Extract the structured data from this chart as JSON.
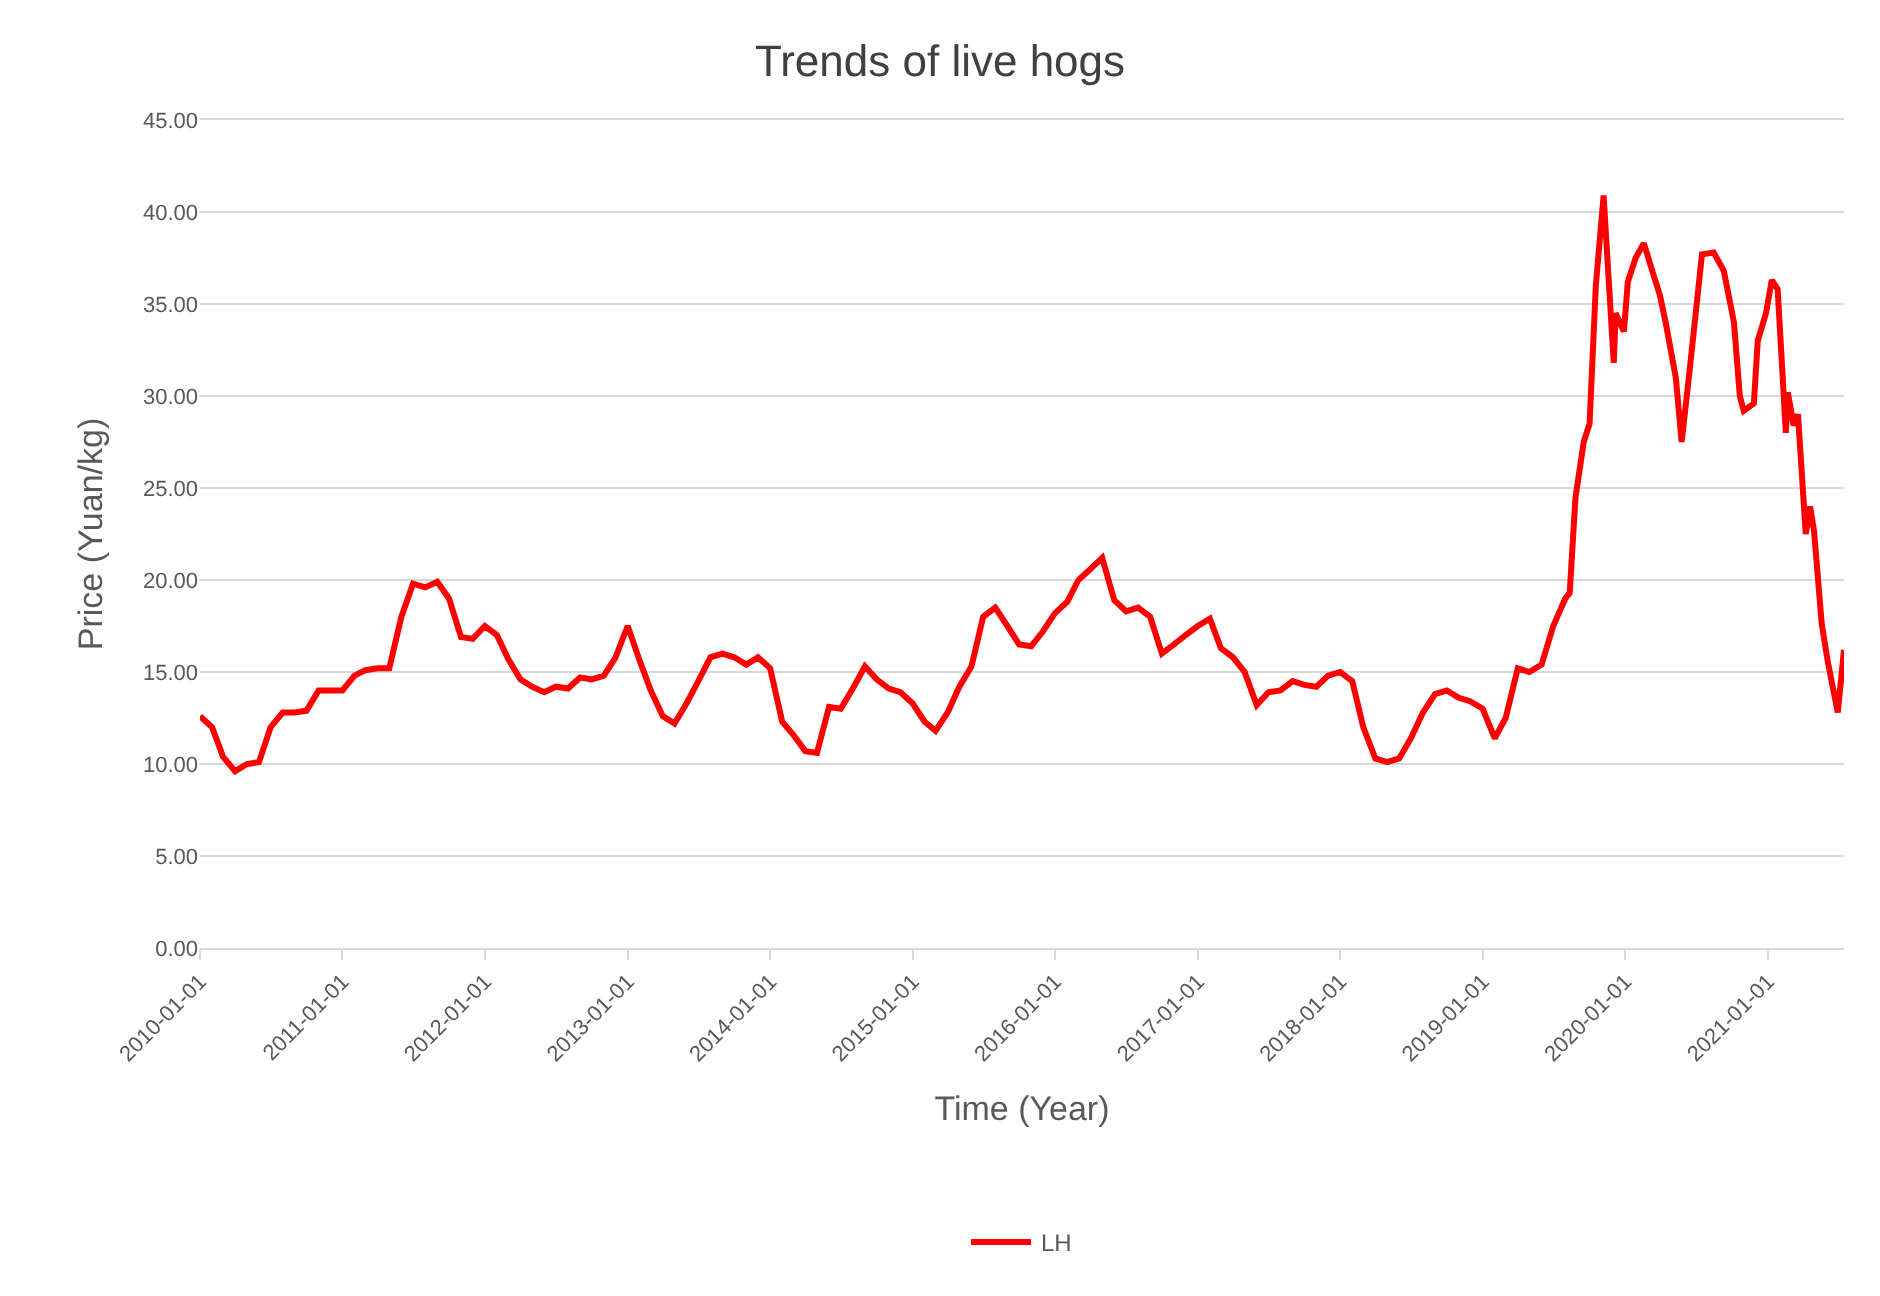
{
  "chart_data": {
    "type": "line",
    "title": "Trends of live hogs",
    "xlabel": "Time (Year)",
    "ylabel": "Price (Yuan/kg)",
    "x": [
      "2010-01",
      "2010-02",
      "2010-03",
      "2010-04",
      "2010-05",
      "2010-06",
      "2010-07",
      "2010-08",
      "2010-09",
      "2010-10",
      "2010-11",
      "2010-12",
      "2011-01",
      "2011-02",
      "2011-03",
      "2011-04",
      "2011-05",
      "2011-06",
      "2011-07",
      "2011-08",
      "2011-09",
      "2011-10",
      "2011-11",
      "2011-12",
      "2012-01",
      "2012-02",
      "2012-03",
      "2012-04",
      "2012-05",
      "2012-06",
      "2012-07",
      "2012-08",
      "2012-09",
      "2012-10",
      "2012-11",
      "2012-12",
      "2013-01",
      "2013-02",
      "2013-03",
      "2013-04",
      "2013-05",
      "2013-06",
      "2013-07",
      "2013-08",
      "2013-09",
      "2013-10",
      "2013-11",
      "2013-12",
      "2014-01",
      "2014-02",
      "2014-03",
      "2014-04",
      "2014-05",
      "2014-06",
      "2014-07",
      "2014-08",
      "2014-09",
      "2014-10",
      "2014-11",
      "2014-12",
      "2015-01",
      "2015-02",
      "2015-03",
      "2015-04",
      "2015-05",
      "2015-06",
      "2015-07",
      "2015-08",
      "2015-09",
      "2015-10",
      "2015-11",
      "2015-12",
      "2016-01",
      "2016-02",
      "2016-03",
      "2016-04",
      "2016-05",
      "2016-06",
      "2016-07",
      "2016-08",
      "2016-09",
      "2016-10",
      "2016-11",
      "2016-12",
      "2017-01",
      "2017-02",
      "2017-03",
      "2017-04",
      "2017-05",
      "2017-06",
      "2017-07",
      "2017-08",
      "2017-09",
      "2017-10",
      "2017-11",
      "2017-12",
      "2018-01",
      "2018-02",
      "2018-03",
      "2018-04",
      "2018-05",
      "2018-06",
      "2018-07",
      "2018-08",
      "2018-09",
      "2018-10",
      "2018-11",
      "2018-12",
      "2019-01",
      "2019-02",
      "2019-03",
      "2019-04",
      "2019-05",
      "2019-06",
      "2019-07",
      "2019-08",
      "2019-08-12",
      "2019-08-27",
      "2019-09-17",
      "2019-10-02",
      "2019-10-18",
      "2019-11-07",
      "2019-11-18",
      "2019-12-03",
      "2019-12-08",
      "2019-12-29",
      "2020-01-08",
      "2020-01-28",
      "2020-02-18",
      "2020-03-15",
      "2020-03-30",
      "2020-04-14",
      "2020-05-10",
      "2020-05-25",
      "2020-06-15",
      "2020-06-25",
      "2020-07-16",
      "2020-08-15",
      "2020-09-10",
      "2020-10-06",
      "2020-10-21",
      "2020-10-31",
      "2020-11-26",
      "2020-12-06",
      "2020-12-27",
      "2021-01-11",
      "2021-01-26",
      "2021-02-16",
      "2021-02-21",
      "2021-03-08",
      "2021-03-19",
      "2021-04-08",
      "2021-04-19",
      "2021-04-29",
      "2021-05-19",
      "2021-06-04",
      "2021-06-29",
      "2021-07-15"
    ],
    "series": [
      {
        "name": "LH",
        "color": "#ff0000",
        "values": [
          12.6,
          12.0,
          10.4,
          9.6,
          10.0,
          10.1,
          12.0,
          12.8,
          12.8,
          12.9,
          14.0,
          14.0,
          14.0,
          14.8,
          15.1,
          15.2,
          15.2,
          18.0,
          19.8,
          19.6,
          19.9,
          19.0,
          16.9,
          16.8,
          17.5,
          17.0,
          15.7,
          14.6,
          14.2,
          13.9,
          14.2,
          14.1,
          14.7,
          14.6,
          14.8,
          15.8,
          17.5,
          15.6,
          14.0,
          12.6,
          12.2,
          13.3,
          14.5,
          15.8,
          16.0,
          15.8,
          15.4,
          15.8,
          15.2,
          12.3,
          11.6,
          10.7,
          10.6,
          13.1,
          13.0,
          14.1,
          15.3,
          14.6,
          14.1,
          13.9,
          13.3,
          12.3,
          11.8,
          12.8,
          14.2,
          15.3,
          18.0,
          18.5,
          17.5,
          16.5,
          16.4,
          17.2,
          18.2,
          18.8,
          20.0,
          20.6,
          21.2,
          18.9,
          18.3,
          18.5,
          18.0,
          16.0,
          16.5,
          17.0,
          17.5,
          17.9,
          16.3,
          15.8,
          15.0,
          13.2,
          13.9,
          14.0,
          14.5,
          14.3,
          14.2,
          14.8,
          15.0,
          14.5,
          12.0,
          10.3,
          10.1,
          10.3,
          11.4,
          12.8,
          13.8,
          14.0,
          13.6,
          13.4,
          13.0,
          11.4,
          12.5,
          15.2,
          15.0,
          15.4,
          17.5,
          19.0,
          19.3,
          24.5,
          27.5,
          28.5,
          36.0,
          40.9,
          37.0,
          31.8,
          34.5,
          33.5,
          36.2,
          37.5,
          38.3,
          36.5,
          35.5,
          34.0,
          31.0,
          27.5,
          31.5,
          33.5,
          37.7,
          37.8,
          36.8,
          34.0,
          30.0,
          29.2,
          29.6,
          33.0,
          34.5,
          36.3,
          35.8,
          28.0,
          30.2,
          28.4,
          29.0,
          22.5,
          24.0,
          22.7,
          17.6,
          15.5,
          12.8,
          16.2
        ]
      }
    ],
    "xlim": [
      "2010-01-01",
      "2021-07-15"
    ],
    "xticks": [
      "2010-01-01",
      "2011-01-01",
      "2012-01-01",
      "2013-01-01",
      "2014-01-01",
      "2015-01-01",
      "2016-01-01",
      "2017-01-01",
      "2018-01-01",
      "2019-01-01",
      "2020-01-01",
      "2021-01-01"
    ],
    "ylim": [
      0,
      45
    ],
    "yticks": [
      {
        "value": 0,
        "label": "0.00"
      },
      {
        "value": 5,
        "label": "5.00"
      },
      {
        "value": 10,
        "label": "10.00"
      },
      {
        "value": 15,
        "label": "15.00"
      },
      {
        "value": 20,
        "label": "20.00"
      },
      {
        "value": 25,
        "label": "25.00"
      },
      {
        "value": 30,
        "label": "30.00"
      },
      {
        "value": 35,
        "label": "35.00"
      },
      {
        "value": 40,
        "label": "40.00"
      },
      {
        "value": 45,
        "label": "45.00"
      }
    ],
    "grid": "y",
    "legend": "bottom",
    "marker": "none",
    "line_style": "solid"
  }
}
